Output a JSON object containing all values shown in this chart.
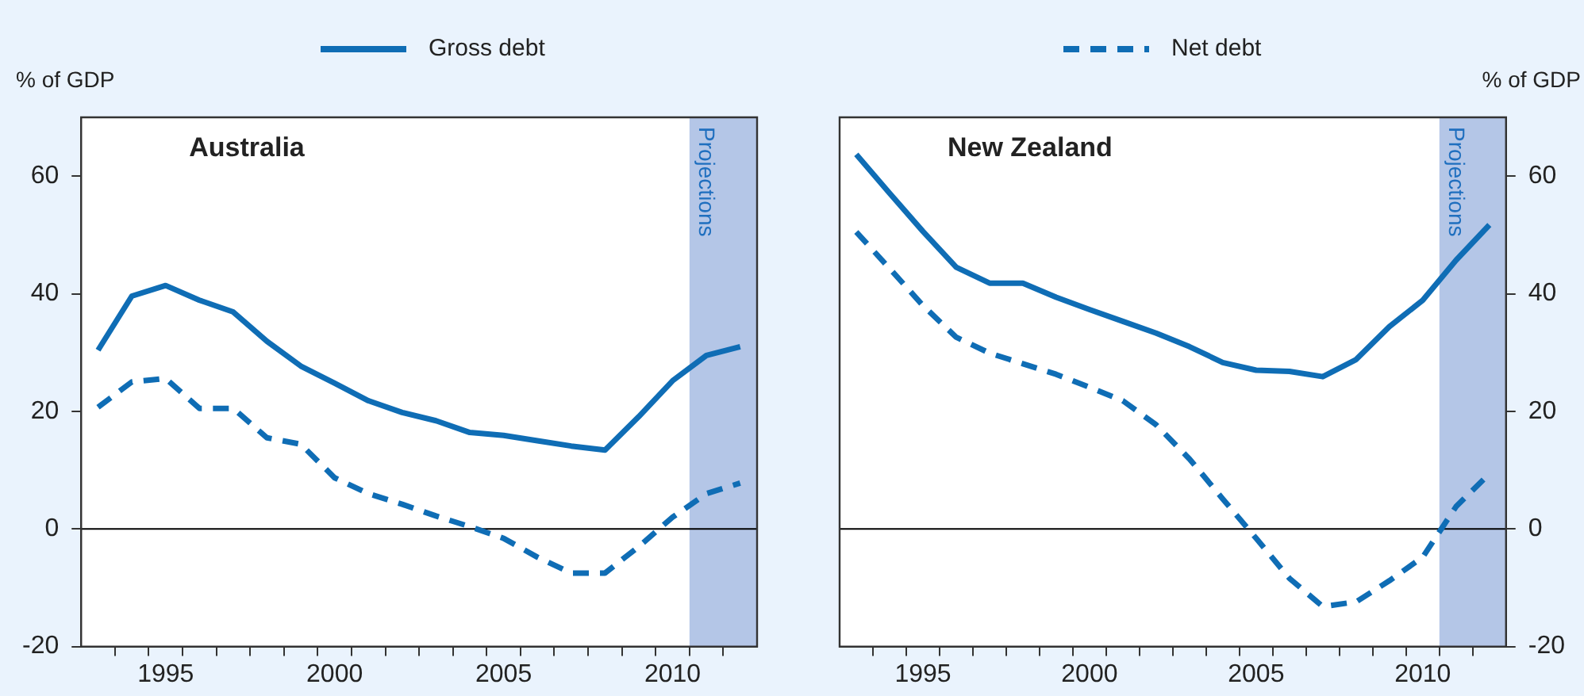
{
  "chart_data": [
    {
      "type": "line",
      "title": "Australia",
      "ylabel": "% of GDP",
      "legend": "top",
      "marker": "none",
      "x": [
        1993,
        1994,
        1995,
        1996,
        1997,
        1998,
        1999,
        2000,
        2001,
        2002,
        2003,
        2004,
        2005,
        2006,
        2007,
        2008,
        2009,
        2010,
        2011,
        2012
      ],
      "series": [
        {
          "name": "Gross debt",
          "color": "#0f6db5",
          "line_style": "solid",
          "values": [
            30.4,
            39.6,
            41.4,
            38.9,
            36.9,
            31.9,
            27.7,
            24.8,
            21.8,
            19.8,
            18.4,
            16.4,
            15.9,
            15.0,
            14.1,
            13.4,
            19.1,
            25.2,
            29.5,
            31.0
          ]
        },
        {
          "name": "Net debt",
          "color": "#0f6db5",
          "line_style": "dashed",
          "values": [
            20.7,
            25.0,
            25.6,
            20.5,
            20.5,
            15.5,
            14.4,
            8.7,
            6.0,
            4.2,
            2.2,
            0.4,
            -1.6,
            -4.8,
            -7.5,
            -7.5,
            -3.0,
            2.0,
            6.0,
            7.8
          ]
        }
      ],
      "xlim": [
        1992.5,
        2012.5
      ],
      "xticks": [
        {
          "value": 1993.5,
          "label": null
        },
        {
          "value": 1994.5,
          "label": null
        },
        1995,
        {
          "value": 1995.5,
          "label": null
        },
        {
          "value": 1996.5,
          "label": null
        },
        {
          "value": 1997.5,
          "label": null
        },
        {
          "value": 1998.5,
          "label": null
        },
        {
          "value": 1999.5,
          "label": null
        },
        2000,
        {
          "value": 2000.5,
          "label": null
        },
        {
          "value": 2001.5,
          "label": null
        },
        {
          "value": 2002.5,
          "label": null
        },
        {
          "value": 2003.5,
          "label": null
        },
        {
          "value": 2004.5,
          "label": null
        },
        2005,
        {
          "value": 2005.5,
          "label": null
        },
        {
          "value": 2006.5,
          "label": null
        },
        {
          "value": 2007.5,
          "label": null
        },
        {
          "value": 2008.5,
          "label": null
        },
        {
          "value": 2009.5,
          "label": null
        },
        2010,
        {
          "value": 2010.5,
          "label": null
        },
        {
          "value": 2011.5,
          "label": null
        }
      ],
      "ylim": [
        -20,
        70
      ],
      "yticks": [
        -20,
        0,
        20,
        40,
        60
      ],
      "ref_lines": [
        {
          "axis": "y",
          "value": 0,
          "color": "#000000"
        }
      ],
      "bands": [
        {
          "axis": "x",
          "from": 2010.5,
          "to": 2012.5,
          "label": "Projections",
          "color": "#b4c6e7"
        }
      ]
    },
    {
      "type": "line",
      "title": "New Zealand",
      "y2label": "% of GDP",
      "marker": "none",
      "x": [
        1993,
        1994,
        1995,
        1996,
        1997,
        1998,
        1999,
        2000,
        2001,
        2002,
        2003,
        2004,
        2005,
        2006,
        2007,
        2008,
        2009,
        2010,
        2011,
        2012
      ],
      "series": [
        {
          "color": "#0f6db5",
          "line_style": "solid",
          "axis": "y2",
          "values": [
            63.7,
            57.1,
            50.6,
            44.5,
            41.8,
            41.8,
            39.4,
            37.3,
            35.3,
            33.3,
            31.0,
            28.3,
            27.0,
            26.8,
            25.9,
            28.8,
            34.4,
            38.9,
            45.7,
            51.7
          ]
        },
        {
          "color": "#0f6db5",
          "line_style": "dashed",
          "axis": "y2",
          "values": [
            50.5,
            44.3,
            38.0,
            32.6,
            29.9,
            28.1,
            26.3,
            24.1,
            21.8,
            17.7,
            11.9,
            5.1,
            -1.6,
            -8.4,
            -13.2,
            -12.4,
            -8.8,
            -4.8,
            3.8,
            9.4
          ]
        }
      ],
      "xlim": [
        1992.5,
        2012.5
      ],
      "xticks": [
        {
          "value": 1993.5,
          "label": null
        },
        {
          "value": 1994.5,
          "label": null
        },
        1995,
        {
          "value": 1995.5,
          "label": null
        },
        {
          "value": 1996.5,
          "label": null
        },
        {
          "value": 1997.5,
          "label": null
        },
        {
          "value": 1998.5,
          "label": null
        },
        {
          "value": 1999.5,
          "label": null
        },
        2000,
        {
          "value": 2000.5,
          "label": null
        },
        {
          "value": 2001.5,
          "label": null
        },
        {
          "value": 2002.5,
          "label": null
        },
        {
          "value": 2003.5,
          "label": null
        },
        {
          "value": 2004.5,
          "label": null
        },
        2005,
        {
          "value": 2005.5,
          "label": null
        },
        {
          "value": 2006.5,
          "label": null
        },
        {
          "value": 2007.5,
          "label": null
        },
        {
          "value": 2008.5,
          "label": null
        },
        {
          "value": 2009.5,
          "label": null
        },
        2010,
        {
          "value": 2010.5,
          "label": null
        },
        {
          "value": 2011.5,
          "label": null
        }
      ],
      "y2lim": [
        -20,
        70
      ],
      "y2ticks": [
        -20,
        0,
        20,
        40,
        60
      ],
      "ref_lines": [
        {
          "axis": "y2",
          "value": 0,
          "color": "#000000"
        }
      ],
      "bands": [
        {
          "axis": "x",
          "from": 2010.5,
          "to": 2012.5,
          "label": "Projections",
          "color": "#b4c6e7"
        }
      ]
    }
  ]
}
